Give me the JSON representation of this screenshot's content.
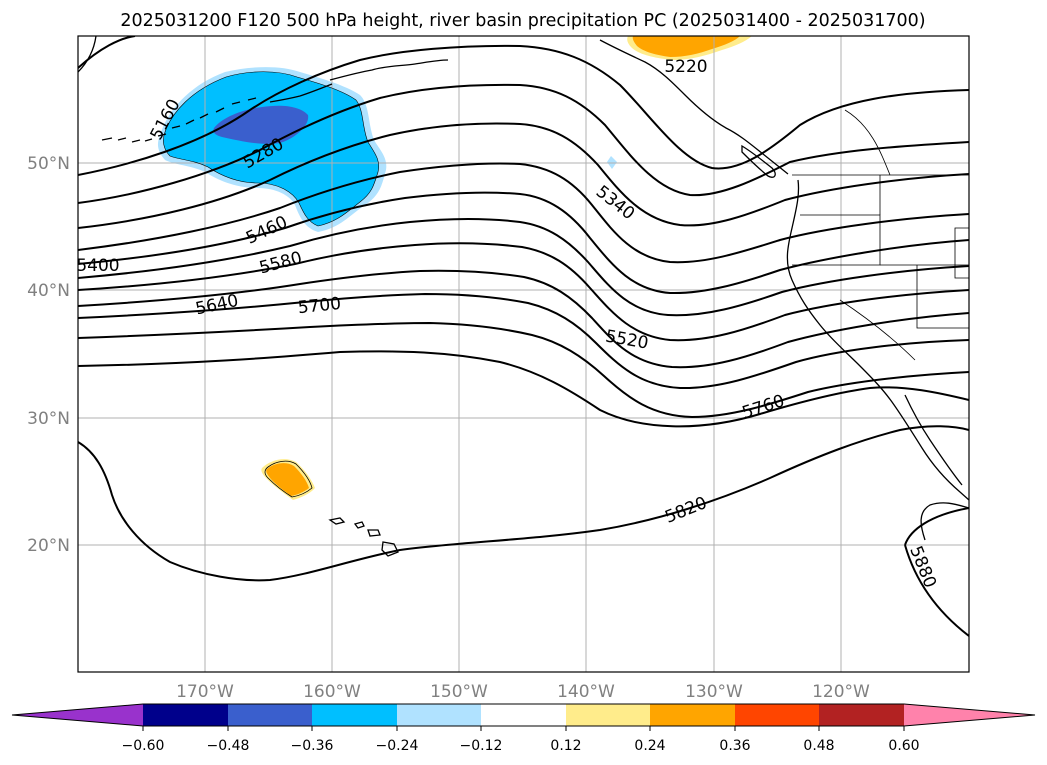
{
  "title": "2025031200 F120 500 hPa height, river basin precipitation PC (2025031400 - 2025031700)",
  "map": {
    "lat_labels": [
      "50°N",
      "40°N",
      "30°N",
      "20°N"
    ],
    "lon_labels": [
      "170°W",
      "160°W",
      "150°W",
      "140°W",
      "130°W",
      "120°W"
    ],
    "grid_lats": [
      50,
      40,
      30,
      20
    ],
    "grid_lons": [
      -170,
      -160,
      -150,
      -140,
      -130,
      -120
    ],
    "extent": {
      "lon_min": -180,
      "lon_max": -110,
      "lat_min": 10,
      "lat_max": 60
    },
    "grid_color": "#b0b0b0"
  },
  "contours": {
    "color": "#000000",
    "labels": [
      {
        "text": "5160"
      },
      {
        "text": "5280"
      },
      {
        "text": "5460"
      },
      {
        "text": "5400"
      },
      {
        "text": "5580"
      },
      {
        "text": "5640"
      },
      {
        "text": "5700"
      },
      {
        "text": "5340"
      },
      {
        "text": "5520"
      },
      {
        "text": "5760"
      },
      {
        "text": "5820"
      },
      {
        "text": "5880"
      },
      {
        "text": "5220"
      }
    ]
  },
  "colorbar": {
    "ticks": [
      "−0.60",
      "−0.48",
      "−0.36",
      "−0.24",
      "−0.12",
      "0.12",
      "0.24",
      "0.36",
      "0.48",
      "0.60"
    ],
    "colors": [
      "#9932cc",
      "#00008b",
      "#3a5fcd",
      "#00bfff",
      "#b0e2ff",
      "#ffffff",
      "#ffec8b",
      "#ffa500",
      "#ff4500",
      "#b22222",
      "#ff82ab"
    ]
  }
}
